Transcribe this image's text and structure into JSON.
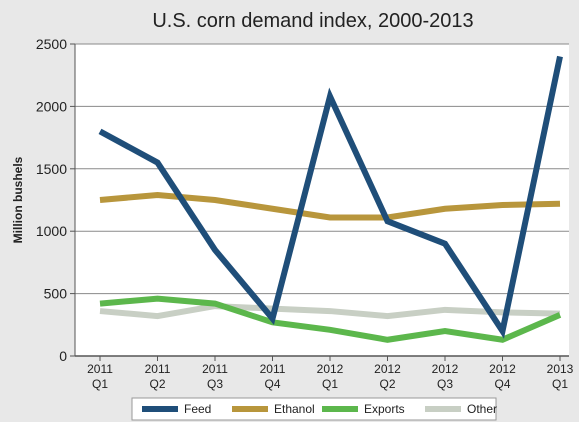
{
  "chart_data": {
    "type": "line",
    "title": "U.S.  corn demand index, 2000-2013",
    "ylabel": "Million bushels",
    "xlabel": "",
    "ylim": [
      0,
      2500
    ],
    "yticks": [
      "0",
      "500",
      "1000",
      "1500",
      "2000",
      "2500"
    ],
    "categories": [
      [
        "2011",
        "Q1"
      ],
      [
        "2011",
        "Q2"
      ],
      [
        "2011",
        "Q3"
      ],
      [
        "2011",
        "Q4"
      ],
      [
        "2012",
        "Q1"
      ],
      [
        "2012",
        "Q2"
      ],
      [
        "2012",
        "Q3"
      ],
      [
        "2012",
        "Q4"
      ],
      [
        "2013",
        "Q1"
      ]
    ],
    "grid": true,
    "legend_position": "bottom",
    "series": [
      {
        "name": "Feed",
        "color": "#1f4e79",
        "values": [
          1800,
          1550,
          850,
          300,
          2080,
          1080,
          900,
          200,
          2400
        ]
      },
      {
        "name": "Ethanol",
        "color": "#b8963c",
        "values": [
          1250,
          1290,
          1250,
          1180,
          1110,
          1110,
          1180,
          1210,
          1220
        ]
      },
      {
        "name": "Exports",
        "color": "#5cb74c",
        "values": [
          420,
          460,
          420,
          270,
          210,
          130,
          200,
          130,
          330
        ]
      },
      {
        "name": "Other",
        "color": "#c8cfc4",
        "values": [
          360,
          320,
          400,
          380,
          360,
          320,
          370,
          350,
          340
        ]
      }
    ]
  }
}
